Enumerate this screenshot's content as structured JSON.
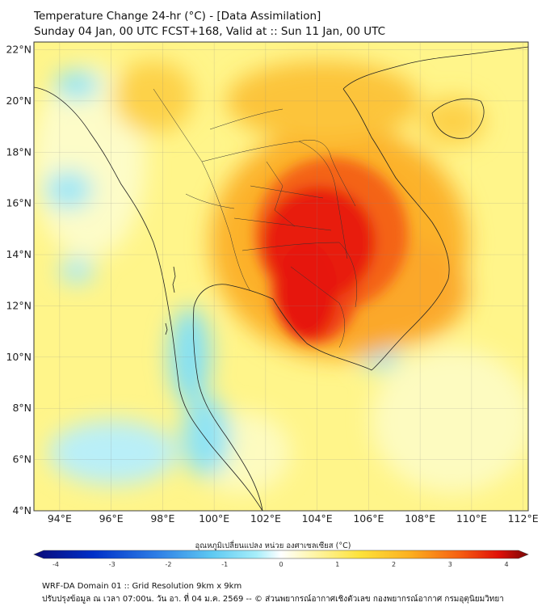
{
  "header": {
    "title": "Temperature Change 24-hr (°C) - [Data Assimilation]",
    "subtitle": "Sunday 04 Jan, 00 UTC FCST+168, Valid at :: Sun 11 Jan, 00 UTC"
  },
  "map": {
    "lat_labels": [
      "22°N",
      "20°N",
      "18°N",
      "16°N",
      "14°N",
      "12°N",
      "10°N",
      "8°N",
      "6°N",
      "4°N"
    ],
    "lon_labels": [
      "94°E",
      "96°E",
      "98°E",
      "100°E",
      "102°E",
      "104°E",
      "106°E",
      "108°E",
      "110°E",
      "112°E"
    ],
    "lat_range": [
      4,
      22.3
    ],
    "lon_range": [
      93.0,
      112.2
    ]
  },
  "colorbar": {
    "label": "อุณหภูมิเปลี่ยนแปลง หน่วย องศาเซลเซียส (°C)",
    "ticks": [
      "-4",
      "-3",
      "-2",
      "-1",
      "0",
      "1",
      "2",
      "3",
      "4"
    ],
    "colors": [
      "#0a0a78",
      "#0030c8",
      "#2e7fe6",
      "#5ec9f2",
      "#a6eefa",
      "#ffffff",
      "#fff7b0",
      "#fde23a",
      "#fcb020",
      "#f66012",
      "#e01008",
      "#7a0606"
    ]
  },
  "footer": {
    "line1": "WRF-DA Domain 01 :: Grid Resolution 9km x 9km",
    "line2": "ปรับปรุงข้อมูล ณ เวลา 07:00น. วัน อา. ที่ 04 ม.ค. 2569 -- © ส่วนพยากรณ์อากาศเชิงตัวเลข กองพยากรณ์อากาศ กรมอุตุนิยมวิทยา"
  }
}
